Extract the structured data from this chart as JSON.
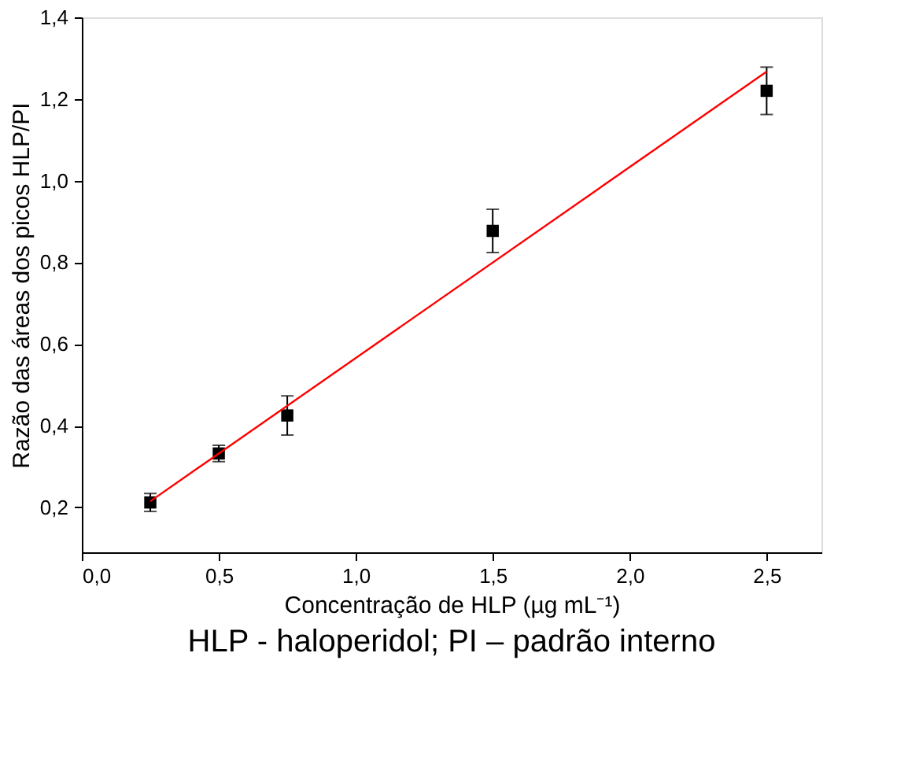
{
  "chart_data": {
    "type": "scatter",
    "xlabel": "Concentração de HLP (µg mL⁻¹)",
    "ylabel": "Razão das áreas dos picos HLP/PI",
    "annotations": [
      "HLP - haloperidol; PI – padrão interno"
    ],
    "x": [
      0.25,
      0.5,
      0.75,
      1.5,
      2.5
    ],
    "series": [
      {
        "color": "#000000",
        "values": [
          0.212,
          0.332,
          0.425,
          0.877,
          1.22
        ],
        "errors": [
          0.022,
          0.02,
          0.048,
          0.053,
          0.058
        ]
      },
      {
        "type": "line",
        "color": "#ff0000",
        "marker": "none",
        "line_style": "solid",
        "x": [
          0.25,
          2.5
        ],
        "values": [
          0.215,
          1.267
        ]
      }
    ],
    "xlim": [
      0,
      2.7
    ],
    "ylim": [
      0.09,
      1.4
    ],
    "xticks": [
      {
        "value": 0,
        "label": "0,0"
      },
      {
        "value": 0.5,
        "label": "0,5"
      },
      {
        "value": 1,
        "label": "1,0"
      },
      {
        "value": 1.5,
        "label": "1,5"
      },
      {
        "value": 2,
        "label": "2,0"
      },
      {
        "value": 2.5,
        "label": "2,5"
      }
    ],
    "yticks": [
      {
        "value": 0.2,
        "label": "0,2"
      },
      {
        "value": 0.4,
        "label": "0,4"
      },
      {
        "value": 0.6,
        "label": "0,6"
      },
      {
        "value": 0.8,
        "label": "0,8"
      },
      {
        "value": 1.0,
        "label": "1,0"
      },
      {
        "value": 1.2,
        "label": "1,2"
      },
      {
        "value": 1.4,
        "label": "1,4"
      }
    ],
    "marker": "square",
    "grid": false
  }
}
